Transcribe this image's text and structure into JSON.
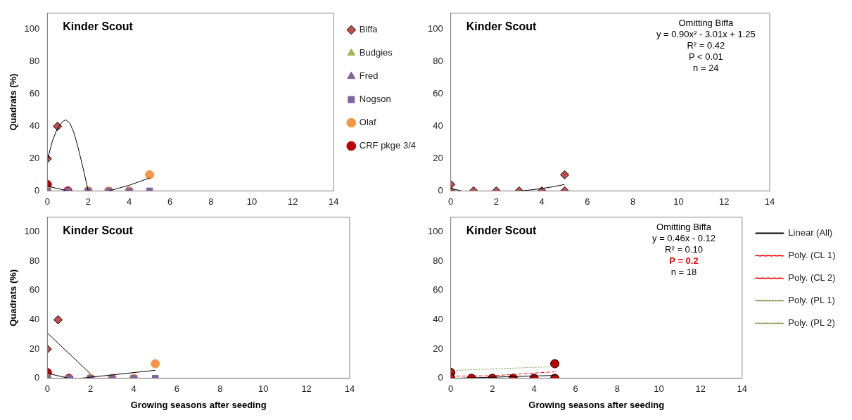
{
  "chart_data": [
    {
      "type": "scatter",
      "title": "Kinder Scout",
      "ylabel": "Quadrats (%)",
      "xlim": [
        0,
        14
      ],
      "xticks": [
        0,
        2,
        4,
        6,
        8,
        10,
        12,
        14
      ],
      "ylim": [
        0,
        110
      ],
      "yticks": [
        0,
        20,
        40,
        60,
        80,
        100
      ],
      "grid": false,
      "legend": "right",
      "series": [
        {
          "name": "Biffa",
          "color": "#c0504d",
          "marker": "diamond",
          "x": [
            0,
            0.5
          ],
          "values": [
            20,
            40
          ]
        },
        {
          "name": "Budgies",
          "color": "#9bbb59",
          "marker": "triangle"
        },
        {
          "name": "Fred",
          "color": "#8064a2",
          "marker": "triangle"
        },
        {
          "name": "Nogson",
          "color": "#8064a2",
          "marker": "square",
          "x": [
            0,
            1,
            2,
            3,
            4,
            5
          ],
          "values": [
            0,
            0,
            0,
            0,
            0,
            0
          ]
        },
        {
          "name": "Olaf",
          "color": "#f79646",
          "marker": "circle",
          "x": [
            0,
            2,
            3,
            4,
            5
          ],
          "values": [
            0,
            0,
            0,
            0,
            10
          ]
        },
        {
          "name": "CRF pkge 3/4",
          "color": "#c00000",
          "marker": "circle",
          "x": [
            0,
            1
          ],
          "values": [
            4,
            0
          ]
        },
        {
          "type": "line",
          "color": "#000000",
          "x": [
            0,
            0.25,
            0.5,
            0.75,
            0.9,
            1.1,
            1.3,
            1.5,
            1.75,
            2
          ],
          "values": [
            19,
            31,
            39,
            43,
            44,
            42,
            36,
            27,
            14,
            0
          ]
        },
        {
          "type": "line",
          "color": "#000000",
          "x": [
            0,
            1
          ],
          "values": [
            3,
            0
          ]
        },
        {
          "type": "line",
          "color": "#000000",
          "x": [
            3,
            4,
            5
          ],
          "values": [
            0,
            3.5,
            8
          ]
        }
      ]
    },
    {
      "type": "scatter",
      "title": "Kinder Scout",
      "xlim": [
        0,
        14
      ],
      "xticks": [
        0,
        2,
        4,
        6,
        8,
        10,
        12,
        14
      ],
      "ylim": [
        0,
        110
      ],
      "yticks": [
        0,
        20,
        40,
        60,
        80,
        100
      ],
      "grid": false,
      "annotations": [
        "Omitting Biffa",
        "y = 0.90x² - 3.01x + 1.25",
        "R² = 0.42",
        "P < 0.01",
        "n = 24"
      ],
      "series": [
        {
          "color": "#c0504d",
          "marker": "diamond",
          "x": [
            0,
            0,
            1,
            2,
            3,
            4,
            5,
            5
          ],
          "values": [
            4,
            0,
            0,
            0,
            0,
            0,
            10,
            0
          ]
        },
        {
          "type": "line",
          "color": "#000000",
          "x": [
            0,
            0.5
          ],
          "values": [
            1.5,
            0
          ]
        },
        {
          "type": "line",
          "color": "#000000",
          "x": [
            3,
            3.5,
            4,
            4.5,
            5
          ],
          "values": [
            0,
            0.6,
            1.5,
            2.6,
            4
          ]
        }
      ]
    },
    {
      "type": "scatter",
      "title": "Kinder Scout",
      "ylabel": "Quadrats (%)",
      "xlabel": "Growing seasons after seeding",
      "xlim": [
        0,
        14
      ],
      "xticks": [
        0,
        2,
        4,
        6,
        8,
        10,
        12,
        14
      ],
      "ylim": [
        0,
        110
      ],
      "yticks": [
        0,
        20,
        40,
        60,
        80,
        100
      ],
      "grid": false,
      "series": [
        {
          "color": "#c0504d",
          "marker": "diamond",
          "x": [
            0,
            0.5
          ],
          "values": [
            20,
            40
          ]
        },
        {
          "color": "#8064a2",
          "marker": "square",
          "x": [
            0,
            1,
            2,
            3,
            4,
            5
          ],
          "values": [
            0,
            0,
            0,
            0,
            0,
            0
          ]
        },
        {
          "color": "#f79646",
          "marker": "circle",
          "x": [
            0,
            2,
            3,
            4,
            5
          ],
          "values": [
            0,
            0,
            0,
            0,
            10
          ]
        },
        {
          "color": "#c00000",
          "marker": "circle",
          "x": [
            0,
            1
          ],
          "values": [
            4,
            0
          ]
        },
        {
          "type": "line",
          "color": "#000000",
          "x": [
            0,
            2
          ],
          "values": [
            31,
            3
          ]
        },
        {
          "type": "line",
          "color": "#000000",
          "x": [
            0,
            1
          ],
          "values": [
            3.5,
            0
          ]
        },
        {
          "type": "line",
          "color": "#000000",
          "x": [
            1.5,
            5
          ],
          "values": [
            0,
            5.5
          ]
        }
      ]
    },
    {
      "type": "scatter",
      "title": "Kinder Scout",
      "xlabel": "Growing seasons after seeding",
      "xlim": [
        0,
        14
      ],
      "xticks": [
        0,
        2,
        4,
        6,
        8,
        10,
        12,
        14
      ],
      "ylim": [
        0,
        110
      ],
      "yticks": [
        0,
        20,
        40,
        60,
        80,
        100
      ],
      "grid": false,
      "legend": "right",
      "annotations": [
        "Omitting Biffa",
        "y = 0.46x - 0.12",
        "R² = 0.10",
        "P = 0.2",
        "n = 18"
      ],
      "series": [
        {
          "color": "#c00000",
          "marker": "circle",
          "x": [
            0,
            0,
            1,
            2,
            3,
            4,
            5,
            5
          ],
          "values": [
            4,
            0,
            0,
            0,
            0,
            0,
            10,
            0
          ]
        },
        {
          "name": "Linear (All)",
          "type": "line",
          "color": "#000000",
          "line_style": "solid",
          "x": [
            0,
            5
          ],
          "values": [
            0,
            2
          ]
        },
        {
          "name": "Poly. (CL 1)",
          "type": "line",
          "color": "#ff0000",
          "line_style": "dashed",
          "x": [
            0,
            2,
            5
          ],
          "values": [
            1.5,
            1.8,
            4.5
          ]
        },
        {
          "name": "Poly. (CL 2)",
          "type": "line",
          "color": "#ff0000",
          "line_style": "dashed"
        },
        {
          "name": "Poly. (PL 1)",
          "type": "line",
          "color": "#76923c",
          "line_style": "dotted",
          "x": [
            0,
            0.3,
            5
          ],
          "values": [
            5,
            5.5,
            8
          ]
        },
        {
          "name": "Poly. (PL 2)",
          "type": "line",
          "color": "#76923c",
          "line_style": "dotted"
        }
      ]
    }
  ]
}
